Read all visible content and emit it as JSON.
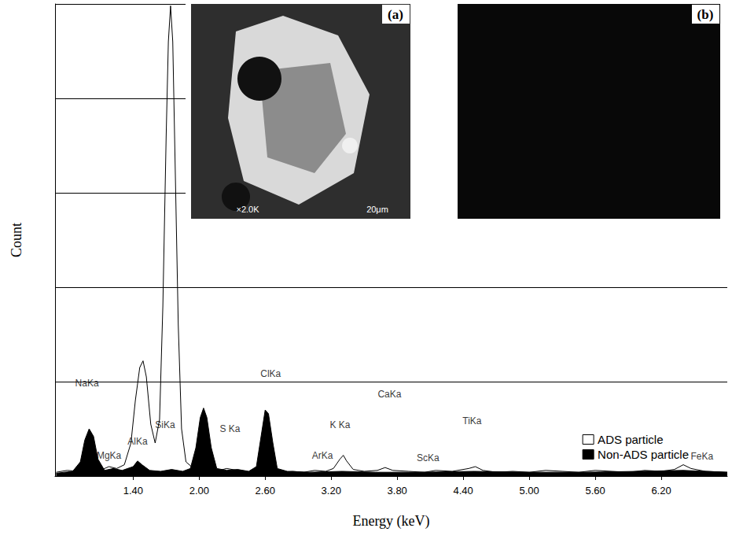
{
  "chart_data": {
    "type": "line",
    "x_label": "Energy (keV)",
    "y_label": "Count",
    "xlim": [
      0.69,
      6.8
    ],
    "xticks": [
      {
        "value": 1.4,
        "label": "1.40"
      },
      {
        "value": 2.0,
        "label": "2.00"
      },
      {
        "value": 2.6,
        "label": "2.60"
      },
      {
        "value": 3.2,
        "label": "3.20"
      },
      {
        "value": 3.8,
        "label": "3.80"
      },
      {
        "value": 4.4,
        "label": "4.40"
      },
      {
        "value": 5.0,
        "label": "5.00"
      },
      {
        "value": 5.6,
        "label": "5.60"
      },
      {
        "value": 6.2,
        "label": "6.20"
      }
    ],
    "ylim": [
      0,
      5
    ],
    "yticks": [
      0,
      1,
      2,
      3,
      4,
      5
    ],
    "grid": true,
    "tick_labels": "x",
    "legend": "bottom-right",
    "series": [
      {
        "name": "Non-ADS particle",
        "color": "#000000",
        "type": "area",
        "x": [
          0.7,
          0.85,
          0.92,
          0.96,
          1.0,
          1.04,
          1.08,
          1.14,
          1.22,
          1.3,
          1.4,
          1.44,
          1.48,
          1.55,
          1.65,
          1.75,
          1.85,
          1.92,
          1.97,
          2.01,
          2.04,
          2.07,
          2.11,
          2.16,
          2.25,
          2.35,
          2.45,
          2.52,
          2.56,
          2.6,
          2.63,
          2.67,
          2.71,
          2.8,
          3.0,
          3.3,
          3.6,
          4.0,
          4.5,
          5.0,
          5.5,
          6.0,
          6.4,
          6.8
        ],
        "values": [
          0.03,
          0.05,
          0.15,
          0.38,
          0.5,
          0.42,
          0.18,
          0.06,
          0.08,
          0.06,
          0.1,
          0.16,
          0.12,
          0.06,
          0.05,
          0.07,
          0.05,
          0.08,
          0.3,
          0.62,
          0.72,
          0.62,
          0.3,
          0.08,
          0.06,
          0.07,
          0.05,
          0.1,
          0.4,
          0.7,
          0.66,
          0.35,
          0.08,
          0.05,
          0.04,
          0.05,
          0.04,
          0.04,
          0.05,
          0.04,
          0.04,
          0.05,
          0.06,
          0.04
        ]
      },
      {
        "name": "ADS particle",
        "color": "#ffffff",
        "type": "line",
        "x": [
          0.7,
          0.8,
          0.9,
          0.98,
          1.04,
          1.1,
          1.18,
          1.25,
          1.32,
          1.38,
          1.42,
          1.46,
          1.49,
          1.52,
          1.56,
          1.6,
          1.64,
          1.67,
          1.7,
          1.72,
          1.74,
          1.76,
          1.78,
          1.81,
          1.84,
          1.88,
          1.95,
          2.05,
          2.15,
          2.25,
          2.35,
          2.45,
          2.55,
          2.65,
          2.75,
          2.85,
          2.95,
          3.05,
          3.15,
          3.22,
          3.28,
          3.31,
          3.34,
          3.4,
          3.5,
          3.62,
          3.69,
          3.76,
          3.9,
          4.05,
          4.15,
          4.3,
          4.45,
          4.51,
          4.58,
          4.7,
          4.85,
          5.0,
          5.15,
          5.3,
          5.45,
          5.6,
          5.75,
          5.9,
          6.05,
          6.2,
          6.32,
          6.4,
          6.47,
          6.6,
          6.8
        ],
        "values": [
          0.04,
          0.06,
          0.05,
          0.08,
          0.12,
          0.06,
          0.1,
          0.08,
          0.12,
          0.35,
          0.8,
          1.15,
          1.22,
          1.05,
          0.55,
          0.35,
          0.6,
          1.8,
          3.6,
          4.6,
          4.98,
          4.6,
          3.4,
          1.6,
          0.5,
          0.15,
          0.08,
          0.06,
          0.05,
          0.08,
          0.06,
          0.04,
          0.05,
          0.06,
          0.04,
          0.05,
          0.04,
          0.06,
          0.05,
          0.08,
          0.18,
          0.22,
          0.16,
          0.07,
          0.05,
          0.06,
          0.09,
          0.06,
          0.05,
          0.04,
          0.06,
          0.05,
          0.08,
          0.1,
          0.06,
          0.04,
          0.05,
          0.04,
          0.06,
          0.05,
          0.04,
          0.06,
          0.05,
          0.04,
          0.06,
          0.05,
          0.07,
          0.12,
          0.08,
          0.05,
          0.04
        ]
      }
    ],
    "annotations": [
      {
        "text": "NaKa",
        "x": 0.98,
        "y": 0.98
      },
      {
        "text": "MgKa",
        "x": 1.18,
        "y": 0.22
      },
      {
        "text": "AlKa",
        "x": 1.44,
        "y": 0.37
      },
      {
        "text": "SiKa",
        "x": 1.69,
        "y": 0.54
      },
      {
        "text": "S Ka",
        "x": 2.28,
        "y": 0.5
      },
      {
        "text": "ClKa",
        "x": 2.65,
        "y": 1.08
      },
      {
        "text": "ArKa",
        "x": 3.12,
        "y": 0.22
      },
      {
        "text": "K Ka",
        "x": 3.28,
        "y": 0.54
      },
      {
        "text": "CaKa",
        "x": 3.73,
        "y": 0.87
      },
      {
        "text": "ScKa",
        "x": 4.08,
        "y": 0.19
      },
      {
        "text": "TiKa",
        "x": 4.48,
        "y": 0.58
      },
      {
        "text": "FeKa",
        "x": 6.57,
        "y": 0.21
      }
    ],
    "insets": [
      {
        "label": "(a)",
        "texts": [
          "×2.0K",
          "20μm"
        ]
      },
      {
        "label": "(b)"
      }
    ]
  }
}
